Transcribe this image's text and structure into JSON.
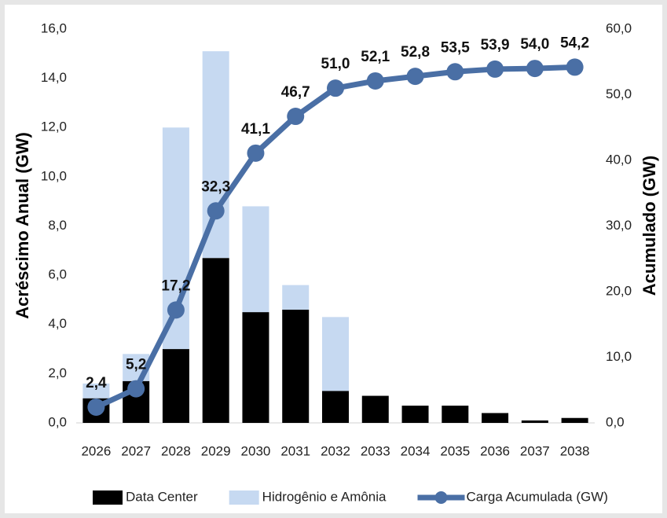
{
  "chart_data": {
    "type": "bar-line",
    "categories": [
      "2026",
      "2027",
      "2028",
      "2029",
      "2030",
      "2031",
      "2032",
      "2033",
      "2034",
      "2035",
      "2036",
      "2037",
      "2038"
    ],
    "series": [
      {
        "name": "Data Center",
        "color": "#000000",
        "values": [
          1.0,
          1.7,
          3.0,
          6.7,
          4.5,
          4.6,
          1.3,
          1.1,
          0.7,
          0.7,
          0.4,
          0.1,
          0.2
        ]
      },
      {
        "name": "Hidrogênio e Amônia",
        "color": "#c6d9f1",
        "values": [
          0.6,
          1.1,
          9.0,
          8.4,
          4.3,
          1.0,
          3.0,
          0.0,
          0.0,
          0.0,
          0.0,
          0.0,
          0.0
        ]
      },
      {
        "name": "Carga Acumulada (GW)",
        "color": "#4a6fa5",
        "axis": "y2",
        "values": [
          2.4,
          5.2,
          17.2,
          32.3,
          41.1,
          46.7,
          51.0,
          52.1,
          52.8,
          53.5,
          53.9,
          54.0,
          54.2
        ],
        "value_labels": [
          "2,4",
          "5,2",
          "17,2",
          "32,3",
          "41,1",
          "46,7",
          "51,0",
          "52,1",
          "52,8",
          "53,5",
          "53,9",
          "54,0",
          "54,2"
        ]
      }
    ],
    "ylabel": "Acréscimo Anual (GW)",
    "y2label": "Acumulado (GW)",
    "ylim": [
      0,
      16
    ],
    "yticks": [
      {
        "value": 0,
        "label": "0,0"
      },
      {
        "value": 2,
        "label": "2,0"
      },
      {
        "value": 4,
        "label": "4,0"
      },
      {
        "value": 6,
        "label": "6,0"
      },
      {
        "value": 8,
        "label": "8,0"
      },
      {
        "value": 10,
        "label": "10,0"
      },
      {
        "value": 12,
        "label": "12,0"
      },
      {
        "value": 14,
        "label": "14,0"
      },
      {
        "value": 16,
        "label": "16,0"
      }
    ],
    "y2lim": [
      0,
      60
    ],
    "y2ticks": [
      {
        "value": 0,
        "label": "0,0"
      },
      {
        "value": 10,
        "label": "10,0"
      },
      {
        "value": 20,
        "label": "20,0"
      },
      {
        "value": 30,
        "label": "30,0"
      },
      {
        "value": 40,
        "label": "40,0"
      },
      {
        "value": 50,
        "label": "50,0"
      },
      {
        "value": 60,
        "label": "60,0"
      }
    ],
    "grid": false
  }
}
